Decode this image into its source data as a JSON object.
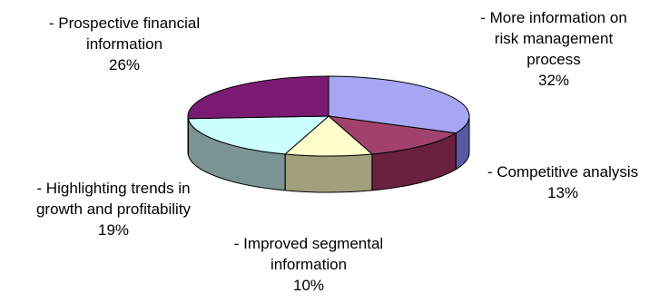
{
  "chart_data": {
    "type": "pie",
    "style": "3d-tilted",
    "legend": "none",
    "slices": [
      {
        "label_lines": [
          "- More information on",
          "risk management",
          "process"
        ],
        "value": 32,
        "pct_label": "32%",
        "color": "#a6a6f4",
        "side": "#5a5aa4"
      },
      {
        "label_lines": [
          "- Competitive analysis"
        ],
        "value": 13,
        "pct_label": "13%",
        "color": "#a1426e",
        "side": "#6a2140"
      },
      {
        "label_lines": [
          "- Improved segmental",
          "information"
        ],
        "value": 10,
        "pct_label": "10%",
        "color": "#ffffcc",
        "side": "#a2a07c"
      },
      {
        "label_lines": [
          "- Highlighting trends in",
          "growth and profitability"
        ],
        "value": 19,
        "pct_label": "19%",
        "color": "#ccffff",
        "side": "#7b9392"
      },
      {
        "label_lines": [
          "- Prospective financial",
          "information"
        ],
        "value": 26,
        "pct_label": "26%",
        "color": "#7b1a72",
        "side": "#4b0f45"
      }
    ]
  }
}
